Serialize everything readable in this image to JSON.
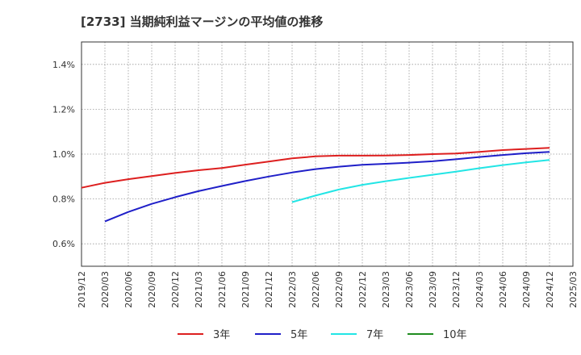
{
  "chart_data": {
    "type": "line",
    "title": "[2733]  当期純利益マージンの平均値の推移",
    "xlabel": "",
    "ylabel": "",
    "ylim": [
      0.5,
      1.5
    ],
    "yticks": [
      0.6,
      0.8,
      1.0,
      1.2,
      1.4
    ],
    "ytick_labels": [
      "0.6%",
      "0.8%",
      "1.0%",
      "1.2%",
      "1.4%"
    ],
    "x_range": [
      "2019/12",
      "2025/03"
    ],
    "xtick_labels": [
      "2019/12",
      "2020/03",
      "2020/06",
      "2020/09",
      "2020/12",
      "2021/03",
      "2021/06",
      "2021/09",
      "2021/12",
      "2022/03",
      "2022/06",
      "2022/09",
      "2022/12",
      "2023/03",
      "2023/06",
      "2023/09",
      "2023/12",
      "2024/03",
      "2024/06",
      "2024/09",
      "2024/12",
      "2025/03"
    ],
    "grid": true,
    "legend_position": "bottom",
    "series": [
      {
        "name": "3年",
        "color": "#dd1f1f",
        "x": [
          "2019/12",
          "2020/03",
          "2020/06",
          "2020/09",
          "2020/12",
          "2021/03",
          "2021/06",
          "2021/09",
          "2021/12",
          "2022/03",
          "2022/06",
          "2022/09",
          "2022/12",
          "2023/03",
          "2023/06",
          "2023/09",
          "2023/12",
          "2024/03",
          "2024/06",
          "2024/09",
          "2024/12"
        ],
        "values": [
          0.85,
          0.872,
          0.888,
          0.902,
          0.916,
          0.928,
          0.938,
          0.953,
          0.967,
          0.981,
          0.99,
          0.993,
          0.993,
          0.994,
          0.996,
          1.0,
          1.003,
          1.01,
          1.018,
          1.023,
          1.028
        ]
      },
      {
        "name": "5年",
        "color": "#1f1fc8",
        "x": [
          "2020/03",
          "2020/06",
          "2020/09",
          "2020/12",
          "2021/03",
          "2021/06",
          "2021/09",
          "2021/12",
          "2022/03",
          "2022/06",
          "2022/09",
          "2022/12",
          "2023/03",
          "2023/06",
          "2023/09",
          "2023/12",
          "2024/03",
          "2024/06",
          "2024/09",
          "2024/12"
        ],
        "values": [
          0.7,
          0.742,
          0.778,
          0.808,
          0.835,
          0.858,
          0.88,
          0.9,
          0.918,
          0.933,
          0.944,
          0.952,
          0.957,
          0.962,
          0.968,
          0.977,
          0.987,
          0.996,
          1.004,
          1.01
        ]
      },
      {
        "name": "7年",
        "color": "#22e5e5",
        "x": [
          "2022/03",
          "2022/06",
          "2022/09",
          "2022/12",
          "2023/03",
          "2023/06",
          "2023/09",
          "2023/12",
          "2024/03",
          "2024/06",
          "2024/09",
          "2024/12"
        ],
        "values": [
          0.786,
          0.815,
          0.842,
          0.863,
          0.879,
          0.894,
          0.908,
          0.922,
          0.937,
          0.951,
          0.963,
          0.974
        ]
      },
      {
        "name": "10年",
        "color": "#1f8c1f",
        "x": [],
        "values": []
      }
    ]
  }
}
